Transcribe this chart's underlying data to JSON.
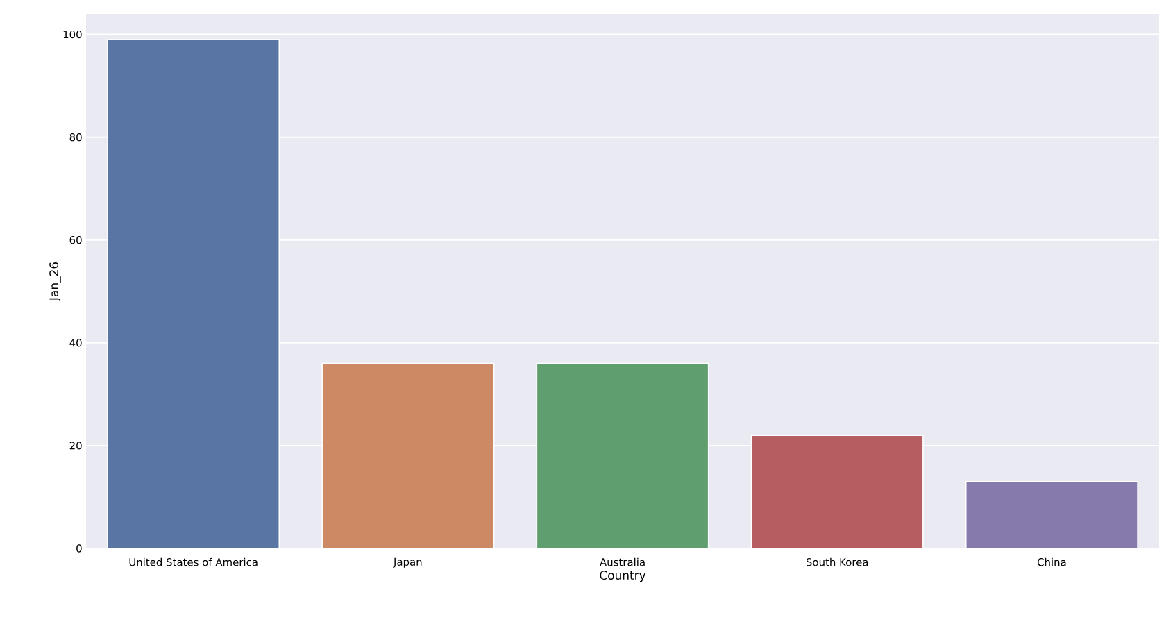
{
  "chart_data": {
    "type": "bar",
    "xlabel": "Country",
    "ylabel": "Jan_26",
    "categories": [
      "United States of America",
      "Japan",
      "Australia",
      "South Korea",
      "China"
    ],
    "values": [
      99,
      36,
      36,
      22,
      13
    ],
    "colors": [
      "#5975a4",
      "#cc8963",
      "#5f9e6e",
      "#b55d60",
      "#857aab"
    ],
    "ylim": [
      0,
      104
    ],
    "yticks": [
      0,
      20,
      40,
      60,
      80,
      100
    ],
    "grid": "y"
  }
}
